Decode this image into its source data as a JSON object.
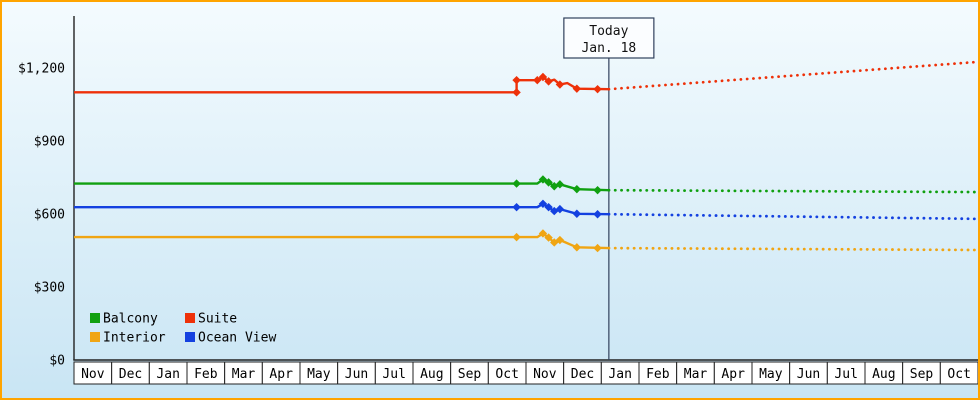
{
  "frame": {
    "border_color": "#ffa400",
    "background_top": "#f4fbfe",
    "background_bottom": "#c9e5f4"
  },
  "chart_data": {
    "type": "line",
    "title": "",
    "grid": false,
    "legend_position": "bottom-left",
    "y_axis": {
      "ticks": [
        {
          "label": "$0",
          "value": 0
        },
        {
          "label": "$300",
          "value": 300
        },
        {
          "label": "$600",
          "value": 600
        },
        {
          "label": "$900",
          "value": 900
        },
        {
          "label": "$1,200",
          "value": 1200
        }
      ],
      "range": [
        0,
        1410
      ]
    },
    "x_axis": {
      "months": [
        "Nov",
        "Dec",
        "Jan",
        "Feb",
        "Mar",
        "Apr",
        "May",
        "Jun",
        "Jul",
        "Aug",
        "Sep",
        "Oct",
        "Nov",
        "Dec",
        "Jan",
        "Feb",
        "Mar",
        "Apr",
        "May",
        "Jun",
        "Jul",
        "Aug",
        "Sep",
        "Oct"
      ]
    },
    "today": {
      "line1": "Today",
      "line2": "Jan. 18",
      "month_index": 14.2
    },
    "series": [
      {
        "name": "Suite",
        "color": "#ee3109",
        "solid": [
          [
            0,
            1100
          ],
          [
            11.75,
            1100
          ],
          [
            11.75,
            1150
          ],
          [
            12.3,
            1150
          ],
          [
            12.45,
            1163
          ],
          [
            12.6,
            1145
          ],
          [
            12.75,
            1152
          ],
          [
            12.9,
            1132
          ],
          [
            13.1,
            1138
          ],
          [
            13.35,
            1115
          ],
          [
            14.2,
            1113
          ]
        ],
        "markers": [
          [
            11.75,
            1100
          ],
          [
            11.75,
            1150
          ],
          [
            12.3,
            1150
          ],
          [
            12.45,
            1163
          ],
          [
            12.6,
            1145
          ],
          [
            12.9,
            1132
          ],
          [
            13.35,
            1115
          ],
          [
            13.9,
            1113
          ]
        ],
        "forecast": [
          [
            14.2,
            1113
          ],
          [
            24,
            1225
          ]
        ]
      },
      {
        "name": "Balcony",
        "color": "#10a010",
        "solid": [
          [
            0,
            725
          ],
          [
            11.75,
            725
          ],
          [
            12.3,
            725
          ],
          [
            12.45,
            742
          ],
          [
            12.6,
            730
          ],
          [
            12.75,
            714
          ],
          [
            12.9,
            722
          ],
          [
            13.35,
            702
          ],
          [
            14.2,
            698
          ]
        ],
        "markers": [
          [
            11.75,
            725
          ],
          [
            12.45,
            742
          ],
          [
            12.6,
            730
          ],
          [
            12.75,
            714
          ],
          [
            12.9,
            722
          ],
          [
            13.35,
            702
          ],
          [
            13.9,
            698
          ]
        ],
        "forecast": [
          [
            14.2,
            698
          ],
          [
            24,
            690
          ]
        ]
      },
      {
        "name": "Ocean View",
        "color": "#1441e0",
        "solid": [
          [
            0,
            628
          ],
          [
            11.75,
            628
          ],
          [
            12.3,
            628
          ],
          [
            12.45,
            642
          ],
          [
            12.6,
            628
          ],
          [
            12.75,
            612
          ],
          [
            12.9,
            620
          ],
          [
            13.35,
            601
          ],
          [
            14.2,
            599
          ]
        ],
        "markers": [
          [
            11.75,
            628
          ],
          [
            12.45,
            642
          ],
          [
            12.6,
            628
          ],
          [
            12.75,
            612
          ],
          [
            12.9,
            620
          ],
          [
            13.35,
            601
          ],
          [
            13.9,
            599
          ]
        ],
        "forecast": [
          [
            14.2,
            599
          ],
          [
            24,
            580
          ]
        ]
      },
      {
        "name": "Interior",
        "color": "#f0a513",
        "solid": [
          [
            0,
            505
          ],
          [
            11.75,
            505
          ],
          [
            12.3,
            505
          ],
          [
            12.45,
            520
          ],
          [
            12.6,
            503
          ],
          [
            12.75,
            483
          ],
          [
            12.9,
            493
          ],
          [
            13.35,
            463
          ],
          [
            14.2,
            460
          ]
        ],
        "markers": [
          [
            11.75,
            505
          ],
          [
            12.45,
            520
          ],
          [
            12.6,
            503
          ],
          [
            12.75,
            483
          ],
          [
            12.9,
            493
          ],
          [
            13.35,
            463
          ],
          [
            13.9,
            460
          ]
        ],
        "forecast": [
          [
            14.2,
            460
          ],
          [
            24,
            452
          ]
        ]
      }
    ],
    "legend": {
      "items": [
        "Balcony",
        "Suite",
        "Interior",
        "Ocean View"
      ]
    }
  }
}
